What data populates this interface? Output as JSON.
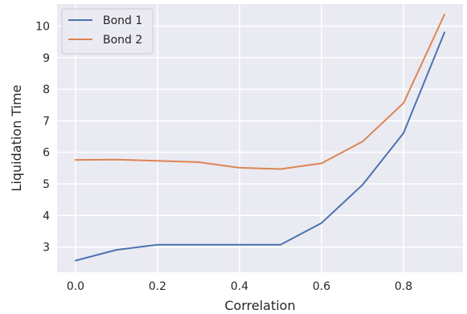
{
  "chart_data": {
    "type": "line",
    "title": "",
    "xlabel": "Correlation",
    "ylabel": "Liquidation Time",
    "x": [
      0.0,
      0.1,
      0.2,
      0.3,
      0.4,
      0.5,
      0.6,
      0.7,
      0.8,
      0.9
    ],
    "xlim": [
      -0.045,
      0.945
    ],
    "ylim": [
      2.2,
      10.7
    ],
    "xticks": [
      0.0,
      0.2,
      0.4,
      0.6,
      0.8
    ],
    "xtick_labels": [
      "0.0",
      "0.2",
      "0.4",
      "0.6",
      "0.8"
    ],
    "yticks": [
      3,
      4,
      5,
      6,
      7,
      8,
      9,
      10
    ],
    "ytick_labels": [
      "3",
      "4",
      "5",
      "6",
      "7",
      "8",
      "9",
      "10"
    ],
    "grid": true,
    "legend": "top-left",
    "series": [
      {
        "name": "Bond 1",
        "color": "#4c72b0",
        "values": [
          2.57,
          2.91,
          3.07,
          3.07,
          3.07,
          3.07,
          3.76,
          4.97,
          6.61,
          9.8
        ]
      },
      {
        "name": "Bond 2",
        "color": "#dd8452",
        "values": [
          5.76,
          5.77,
          5.73,
          5.69,
          5.51,
          5.47,
          5.65,
          6.34,
          7.56,
          10.37
        ]
      }
    ]
  }
}
